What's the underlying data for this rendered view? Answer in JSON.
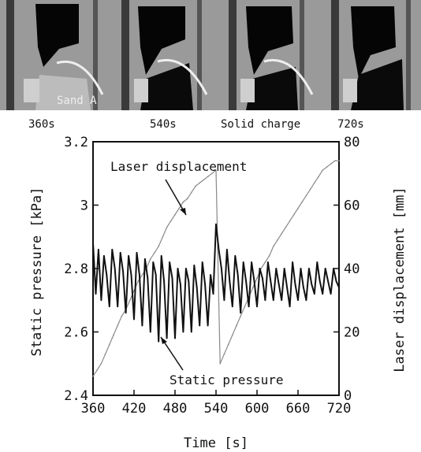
{
  "photo_strip": {
    "overlay_text": "Sand A",
    "labels": [
      "360s",
      "540s",
      "Solid charge",
      "720s"
    ]
  },
  "chart_data": {
    "type": "line",
    "xlabel": "Time  [s]",
    "ylabel_left": "Static pressure  [kPa]",
    "ylabel_right": "Laser displacement  [mm]",
    "xlim": [
      360,
      720
    ],
    "ylim_left": [
      2.4,
      3.2
    ],
    "ylim_right": [
      0,
      80
    ],
    "x_ticks": [
      "360",
      "420",
      "480",
      "540",
      "600",
      "660",
      "720"
    ],
    "y_left_ticks": [
      "2.4",
      "2.6",
      "2.8",
      "3",
      "3.2"
    ],
    "y_right_ticks": [
      "0",
      "20",
      "40",
      "60",
      "80"
    ],
    "annotations": [
      "Laser displacement",
      "Static pressure"
    ],
    "series": [
      {
        "axis": "right",
        "x": [
          360,
          366,
          372,
          378,
          384,
          390,
          396,
          402,
          408,
          414,
          420,
          426,
          432,
          438,
          444,
          450,
          456,
          462,
          468,
          474,
          480,
          486,
          492,
          498,
          504,
          510,
          516,
          522,
          528,
          534,
          540,
          546,
          552,
          558,
          564,
          570,
          576,
          582,
          588,
          594,
          600,
          606,
          612,
          618,
          624,
          630,
          636,
          642,
          648,
          654,
          660,
          666,
          672,
          678,
          684,
          690,
          696,
          702,
          708,
          714,
          720
        ],
        "values": [
          6,
          8,
          10,
          13,
          16,
          19,
          22,
          25,
          27,
          30,
          33,
          36,
          38,
          40,
          43,
          45,
          47,
          50,
          53,
          55,
          57,
          59,
          61,
          62,
          64,
          66,
          67,
          68,
          69,
          70,
          71,
          10,
          13,
          16,
          19,
          22,
          25,
          28,
          31,
          34,
          37,
          40,
          42,
          44,
          47,
          49,
          51,
          53,
          55,
          57,
          59,
          61,
          63,
          65,
          67,
          69,
          71,
          72,
          73,
          74,
          74
        ]
      },
      {
        "axis": "left",
        "x": [
          360,
          364,
          368,
          372,
          376,
          380,
          384,
          388,
          392,
          396,
          400,
          404,
          408,
          412,
          416,
          420,
          424,
          428,
          432,
          436,
          440,
          444,
          448,
          452,
          456,
          460,
          464,
          468,
          472,
          476,
          480,
          484,
          488,
          492,
          496,
          500,
          504,
          508,
          512,
          516,
          520,
          524,
          528,
          532,
          536,
          540,
          544,
          548,
          552,
          556,
          560,
          564,
          568,
          572,
          576,
          580,
          584,
          588,
          592,
          596,
          600,
          604,
          608,
          612,
          616,
          620,
          624,
          628,
          632,
          636,
          640,
          644,
          648,
          652,
          656,
          660,
          664,
          668,
          672,
          676,
          680,
          684,
          688,
          692,
          696,
          700,
          704,
          708,
          712,
          716,
          720
        ],
        "values": [
          2.88,
          2.72,
          2.86,
          2.7,
          2.84,
          2.78,
          2.68,
          2.86,
          2.8,
          2.68,
          2.85,
          2.79,
          2.66,
          2.84,
          2.78,
          2.64,
          2.85,
          2.78,
          2.62,
          2.83,
          2.77,
          2.6,
          2.82,
          2.78,
          2.57,
          2.84,
          2.76,
          2.58,
          2.82,
          2.77,
          2.58,
          2.8,
          2.75,
          2.6,
          2.8,
          2.76,
          2.6,
          2.81,
          2.74,
          2.62,
          2.82,
          2.75,
          2.62,
          2.78,
          2.72,
          2.94,
          2.86,
          2.8,
          2.7,
          2.86,
          2.76,
          2.68,
          2.84,
          2.78,
          2.66,
          2.82,
          2.76,
          2.68,
          2.82,
          2.76,
          2.68,
          2.8,
          2.77,
          2.7,
          2.82,
          2.76,
          2.7,
          2.8,
          2.75,
          2.7,
          2.8,
          2.74,
          2.68,
          2.82,
          2.75,
          2.7,
          2.8,
          2.74,
          2.7,
          2.8,
          2.75,
          2.72,
          2.82,
          2.76,
          2.72,
          2.8,
          2.76,
          2.72,
          2.8,
          2.76,
          2.74
        ]
      }
    ]
  }
}
